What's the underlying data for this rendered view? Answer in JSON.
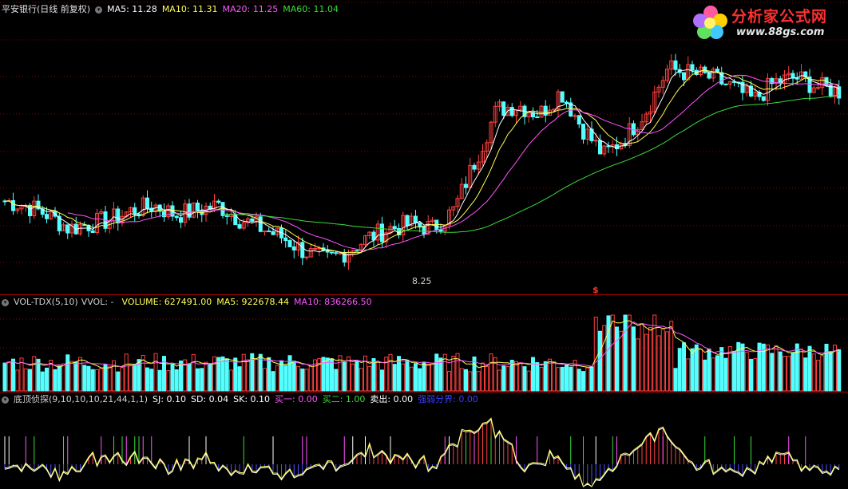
{
  "header": {
    "title": "平安银行(日线 前复权)",
    "ma5": "MA5: 11.28",
    "ma10": "MA10: 11.31",
    "ma20": "MA20: 11.25",
    "ma60": "MA60: 11.04"
  },
  "logo": {
    "brand": "分析家公式网",
    "url": "www.88gs.com"
  },
  "price_panel": {
    "low_label": "8.25",
    "marker": "$"
  },
  "volume_header": {
    "name": "VOL-TDX(5,10)",
    "vvol": "VVOL: -",
    "volume": "VOLUME: 627491.00",
    "ma5": "MA5: 922678.44",
    "ma10": "MA10: 836266.50"
  },
  "indicator_header": {
    "name": "底顶侦探(9,10,10,10,21,44,1,1)",
    "sj": "SJ: 0.10",
    "sd": "SD: 0.04",
    "sk": "SK: 0.10",
    "buy1": "买一: 0.00",
    "buy2": "买二: 1.00",
    "sell": "卖出: 0.00",
    "strong": "强弱分界: 0.00"
  },
  "colors": {
    "up": "#ff4040",
    "down": "#54ffff",
    "ma5": "#ffffff",
    "ma10": "#ffff54",
    "ma20": "#ff54ff",
    "ma60": "#3cdc3c",
    "grid": "#8b0000",
    "sep": "#b00000"
  },
  "chart_data": [
    {
      "type": "candlestick",
      "title": "平安银行(日线 前复权)",
      "series": [
        {
          "name": "MA5",
          "latest": 11.28
        },
        {
          "name": "MA10",
          "latest": 11.31
        },
        {
          "name": "MA20",
          "latest": 11.25
        },
        {
          "name": "MA60",
          "latest": 11.04
        }
      ],
      "annotations": [
        {
          "label": "8.25",
          "type": "period-low"
        }
      ],
      "close_trend": [
        9.6,
        9.5,
        9.3,
        9.0,
        9.1,
        9.2,
        9.4,
        9.5,
        9.3,
        9.4,
        9.5,
        9.2,
        9.0,
        8.8,
        8.5,
        8.3,
        8.5,
        8.8,
        9.0,
        9.1,
        9.0,
        9.4,
        10.5,
        11.6,
        11.7,
        11.5,
        12.0,
        11.2,
        10.6,
        11.0,
        11.6,
        12.5,
        12.4,
        12.3,
        12.1,
        11.8,
        12.2,
        12.3,
        12.1,
        12.0
      ]
    },
    {
      "type": "bar",
      "title": "VOL-TDX(5,10)",
      "series": [
        {
          "name": "VOLUME",
          "latest": 627491.0
        },
        {
          "name": "MA5",
          "latest": 922678.44
        },
        {
          "name": "MA10",
          "latest": 836266.5
        }
      ]
    },
    {
      "type": "line",
      "title": "底顶侦探(9,10,10,10,21,44,1,1)",
      "series": [
        {
          "name": "SJ",
          "latest": 0.1
        },
        {
          "name": "SD",
          "latest": 0.04
        },
        {
          "name": "SK",
          "latest": 0.1
        },
        {
          "name": "买一",
          "latest": 0.0
        },
        {
          "name": "买二",
          "latest": 1.0
        },
        {
          "name": "卖出",
          "latest": 0.0
        },
        {
          "name": "强弱分界",
          "latest": 0.0
        }
      ]
    }
  ]
}
